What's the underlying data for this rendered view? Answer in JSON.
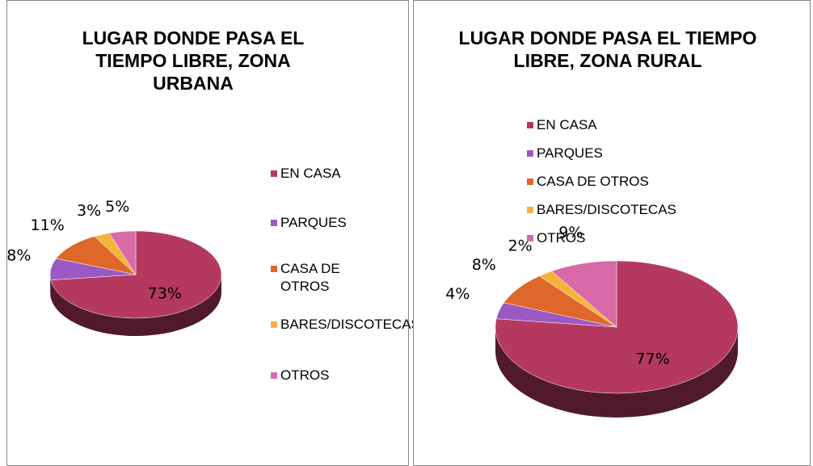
{
  "chart_data": [
    {
      "type": "pie",
      "title": "LUGAR DONDE PASA EL TIEMPO LIBRE, ZONA URBANA",
      "categories": [
        "EN CASA",
        "PARQUES",
        "CASA DE OTROS",
        "BARES/DISCOTECAS",
        "OTROS"
      ],
      "values": [
        73,
        8,
        11,
        3,
        5
      ],
      "value_labels": [
        "73%",
        "8%",
        "11%",
        "3%",
        "5%"
      ],
      "colors": [
        "#b5395f",
        "#9b59c4",
        "#e0672a",
        "#f4b43a",
        "#d86aa8"
      ],
      "legend": "right"
    },
    {
      "type": "pie",
      "title": "LUGAR DONDE PASA EL TIEMPO LIBRE, ZONA RURAL",
      "categories": [
        "EN CASA",
        "PARQUES",
        "CASA DE OTROS",
        "BARES/DISCOTECAS",
        "OTROS"
      ],
      "values": [
        77,
        4,
        8,
        2,
        9
      ],
      "value_labels": [
        "77%",
        "4%",
        "8%",
        "2%",
        "9%"
      ],
      "colors": [
        "#b5395f",
        "#9b59c4",
        "#e0672a",
        "#f4b43a",
        "#d86aa8"
      ],
      "legend": "top"
    }
  ]
}
